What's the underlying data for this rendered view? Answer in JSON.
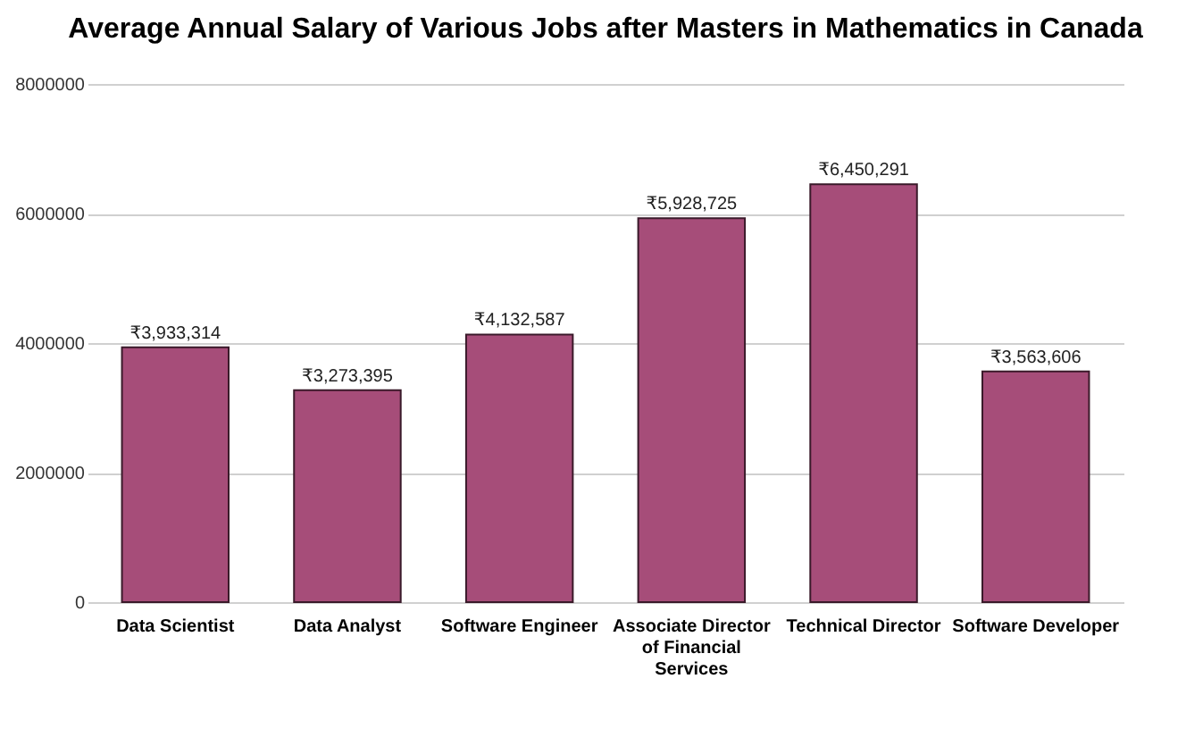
{
  "chart_data": {
    "type": "bar",
    "title": "Average Annual Salary of Various Jobs after Masters in Mathematics in Canada",
    "categories": [
      "Data Scientist",
      "Data Analyst",
      "Software Engineer",
      "Associate Director of Financial Services",
      "Technical Director",
      "Software Developer"
    ],
    "values": [
      3933314,
      3273395,
      4132587,
      5928725,
      6450291,
      3563606
    ],
    "value_labels": [
      "₹3,933,314",
      "₹3,273,395",
      "₹4,132,587",
      "₹5,928,725",
      "₹6,450,291",
      "₹3,563,606"
    ],
    "color": "#a64d79",
    "ylim": [
      0,
      8000000
    ],
    "yticks": [
      0,
      2000000,
      4000000,
      6000000,
      8000000
    ],
    "grid": "y"
  }
}
